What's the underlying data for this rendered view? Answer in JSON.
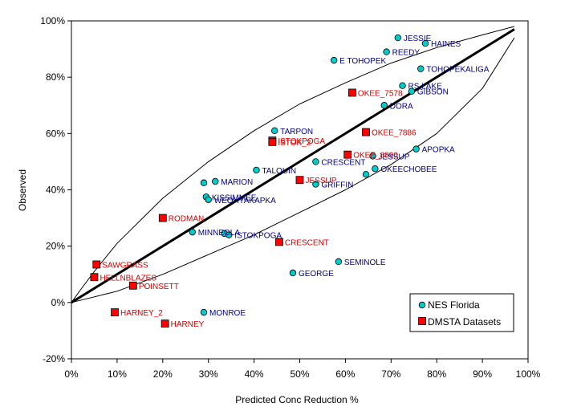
{
  "chart_data": {
    "type": "scatter",
    "xlabel": "Predicted Conc Reduction %",
    "ylabel": "Observed",
    "xlim": [
      0,
      100
    ],
    "ylim": [
      -20,
      100
    ],
    "x_ticks": [
      "0%",
      "10%",
      "20%",
      "30%",
      "40%",
      "50%",
      "60%",
      "70%",
      "80%",
      "90%",
      "100%"
    ],
    "y_ticks": [
      "-20%",
      "0%",
      "20%",
      "40%",
      "60%",
      "80%",
      "100%"
    ],
    "grid": false,
    "legend_position": "bottom-right",
    "series": [
      {
        "name": "NES Florida",
        "marker": "circle",
        "color": "#00cccc",
        "label_color": "#000080",
        "points": [
          {
            "label": "JESSIE",
            "x": 71.5,
            "y": 94
          },
          {
            "label": "HAINES",
            "x": 77.5,
            "y": 92
          },
          {
            "label": "REEDY",
            "x": 69,
            "y": 89
          },
          {
            "label": "E TOHOPEK",
            "x": 57.5,
            "y": 86
          },
          {
            "label": "TOHOPEKALIGA",
            "x": 76.5,
            "y": 83
          },
          {
            "label": "RS LAKE",
            "x": 72.5,
            "y": 77
          },
          {
            "label": "GIBSON",
            "x": 74.5,
            "y": 75
          },
          {
            "label": "DORA",
            "x": 68.5,
            "y": 70
          },
          {
            "label": "TARPON",
            "x": 44.5,
            "y": 61
          },
          {
            "label": "APOPKA",
            "x": 75.5,
            "y": 54.5
          },
          {
            "label": "JESSUP",
            "x": 66,
            "y": 52
          },
          {
            "label": "CRESCENT",
            "x": 53.5,
            "y": 50
          },
          {
            "label": "OKEECHOBEE",
            "x": 66.5,
            "y": 47.5
          },
          {
            "label": "",
            "x": 64.5,
            "y": 45.5
          },
          {
            "label": "TALQUIN",
            "x": 40.5,
            "y": 47
          },
          {
            "label": "MARION",
            "x": 31.5,
            "y": 43
          },
          {
            "label": "",
            "x": 29,
            "y": 42.5
          },
          {
            "label": "GRIFFIN",
            "x": 53.5,
            "y": 42
          },
          {
            "label": "KISSIMMEE",
            "x": 29.5,
            "y": 37.5
          },
          {
            "label": "WEOHYAKAPKA",
            "x": 30,
            "y": 36.5
          },
          {
            "label": "MINNEOLA",
            "x": 26.5,
            "y": 25
          },
          {
            "label": "",
            "x": 33.5,
            "y": 24.5
          },
          {
            "label": "ISTOKPOGA",
            "x": 34.5,
            "y": 24
          },
          {
            "label": "SEMINOLE",
            "x": 58.5,
            "y": 14.5
          },
          {
            "label": "GEORGE",
            "x": 48.5,
            "y": 10.5
          },
          {
            "label": "MONROE",
            "x": 29,
            "y": -3.5
          }
        ]
      },
      {
        "name": "DMSTA Datasets",
        "marker": "square",
        "color": "#ff0000",
        "label_color": "#cc0000",
        "points": [
          {
            "label": "OKEE_7578",
            "x": 61.5,
            "y": 74.5
          },
          {
            "label": "OKEE_7886",
            "x": 64.5,
            "y": 60.5
          },
          {
            "label": "ISTOKPOGA",
            "x": 44,
            "y": 57.5
          },
          {
            "label": "ISTOK_2",
            "x": 44,
            "y": 57
          },
          {
            "label": "OKEE_8890",
            "x": 60.5,
            "y": 52.5
          },
          {
            "label": "JESSUP",
            "x": 50,
            "y": 43.5
          },
          {
            "label": "RODMAN",
            "x": 20,
            "y": 30
          },
          {
            "label": "CRESCENT",
            "x": 45.5,
            "y": 21.5
          },
          {
            "label": "SAWGRASS",
            "x": 5.5,
            "y": 13.5
          },
          {
            "label": "POINSETT",
            "x": 13.5,
            "y": 6
          },
          {
            "label": "HELLNBLAZES",
            "x": 5,
            "y": 9
          },
          {
            "label": "HARNEY_2",
            "x": 9.5,
            "y": -3.5
          },
          {
            "label": "HARNEY",
            "x": 20.5,
            "y": -7.5
          }
        ]
      }
    ],
    "lines": {
      "fit": {
        "color": "#000000",
        "x": [
          0,
          97
        ],
        "y": [
          0,
          97
        ]
      },
      "upper_bound": {
        "color": "#000000",
        "x": [
          0,
          2,
          5,
          10,
          20,
          30,
          40,
          50,
          60,
          70,
          80,
          90,
          97
        ],
        "y": [
          0,
          4.5,
          11,
          21,
          37,
          50,
          61,
          70.5,
          78,
          85,
          90.5,
          95,
          98
        ]
      },
      "lower_bound": {
        "color": "#000000",
        "x": [
          0,
          10,
          20,
          30,
          40,
          50,
          60,
          70,
          80,
          90,
          97
        ],
        "y": [
          0,
          4,
          10,
          17,
          24,
          32,
          40,
          49,
          60,
          76,
          94
        ]
      }
    }
  }
}
